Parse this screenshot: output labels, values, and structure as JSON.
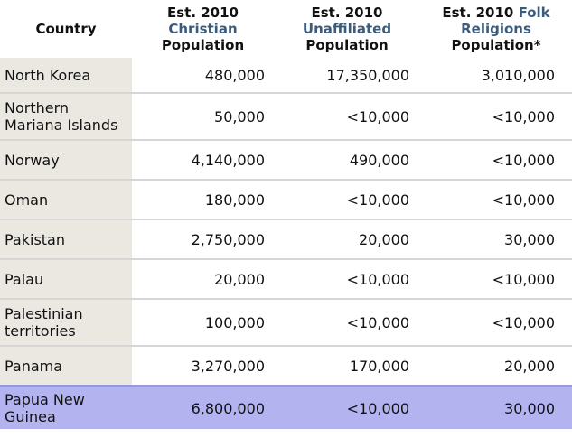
{
  "header": {
    "country": "Country",
    "christian": {
      "line1": "Est. 2010",
      "line2": "Christian",
      "line3": "Population"
    },
    "unaffiliated": {
      "line1": "Est. 2010",
      "line2": "Unaffiliated",
      "line3": "Population"
    },
    "folk": {
      "line1a": "Est. 2010 ",
      "line1b": "Folk",
      "line2": "Religions",
      "line3": "Population*"
    }
  },
  "rows": [
    {
      "country_lines": [
        "North Korea"
      ],
      "christian": "480,000",
      "unaffiliated": "17,350,000",
      "folk": "3,010,000"
    },
    {
      "country_lines": [
        "Northern",
        "Mariana Islands"
      ],
      "christian": "50,000",
      "unaffiliated": "<10,000",
      "folk": "<10,000"
    },
    {
      "country_lines": [
        "Norway"
      ],
      "christian": "4,140,000",
      "unaffiliated": "490,000",
      "folk": "<10,000"
    },
    {
      "country_lines": [
        "Oman"
      ],
      "christian": "180,000",
      "unaffiliated": "<10,000",
      "folk": "<10,000"
    },
    {
      "country_lines": [
        "Pakistan"
      ],
      "christian": "2,750,000",
      "unaffiliated": "20,000",
      "folk": "30,000"
    },
    {
      "country_lines": [
        "Palau"
      ],
      "christian": "20,000",
      "unaffiliated": "<10,000",
      "folk": "<10,000"
    },
    {
      "country_lines": [
        "Palestinian",
        "territories"
      ],
      "christian": "100,000",
      "unaffiliated": "<10,000",
      "folk": "<10,000"
    },
    {
      "country_lines": [
        "Panama"
      ],
      "christian": "3,270,000",
      "unaffiliated": "170,000",
      "folk": "20,000"
    },
    {
      "country_lines": [
        "Papua New",
        "Guinea"
      ],
      "christian": "6,800,000",
      "unaffiliated": "<10,000",
      "folk": "30,000"
    }
  ],
  "colors": {
    "country_column_bg": "#eae8e1",
    "header_accent": "#3b5b7c",
    "highlight_row_bg": "#b3b3f0",
    "row_divider": "#d6d6d6"
  }
}
